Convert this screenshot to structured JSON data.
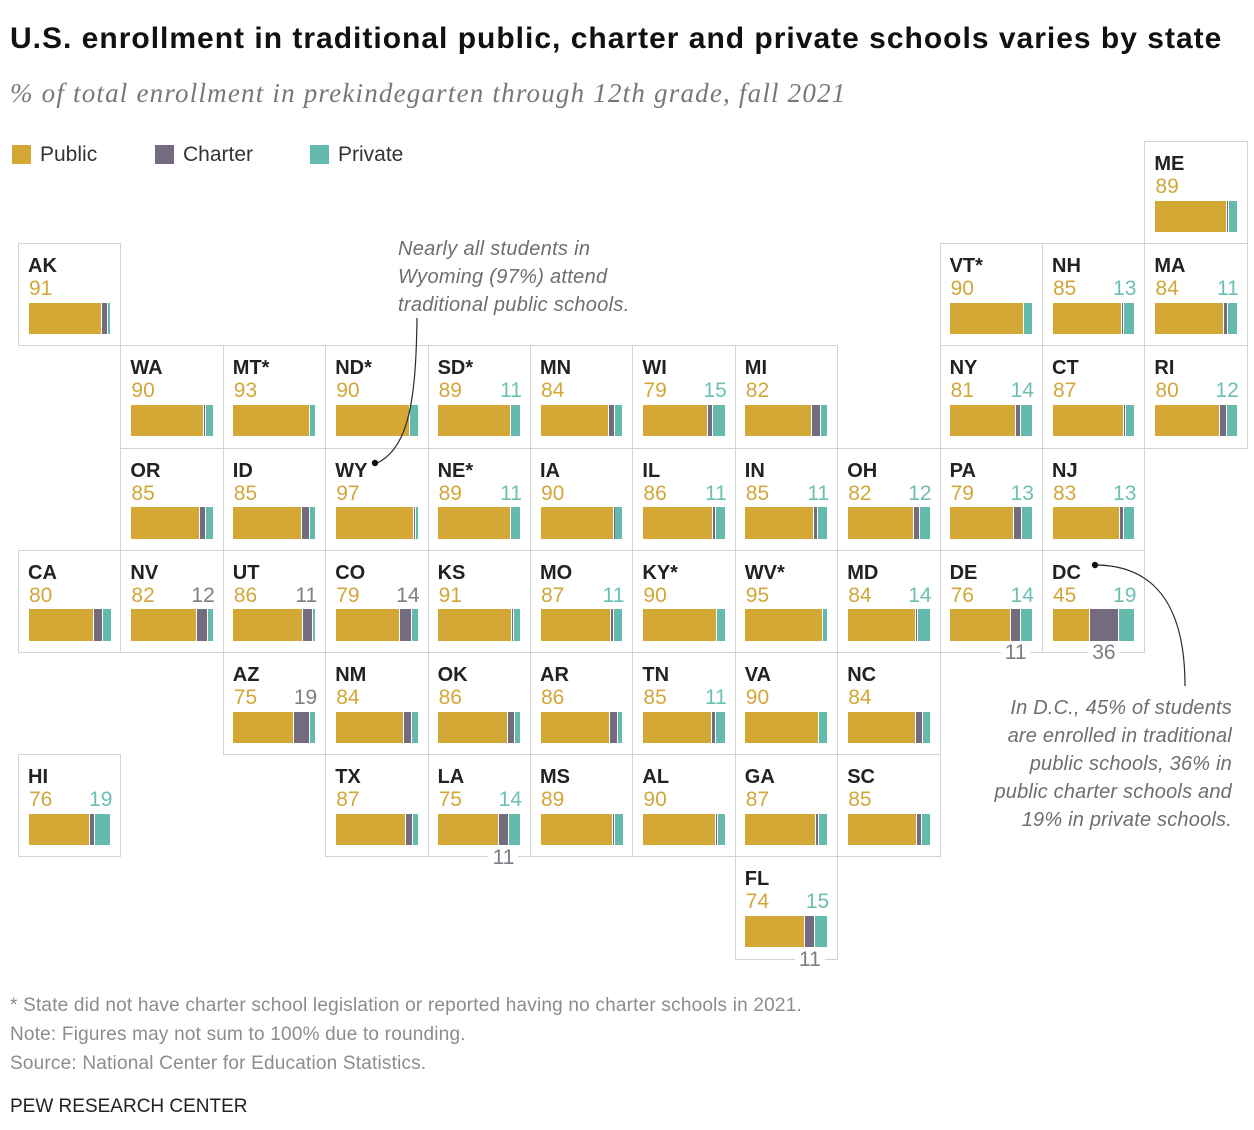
{
  "chart_data": {
    "type": "bar",
    "subtype": "stacked-bar-tile-grid-map",
    "title": "U.S. enrollment in traditional public, charter and private schools varies by state",
    "subtitle": "% of total enrollment in prekindegarten through 12th grade, fall 2021",
    "unit": "%",
    "legend_position": "top-left",
    "label_min": 11,
    "categories": [
      "ME",
      "AK",
      "VT*",
      "NH",
      "MA",
      "WA",
      "MT*",
      "ND*",
      "SD*",
      "MN",
      "WI",
      "MI",
      "NY",
      "CT",
      "RI",
      "OR",
      "ID",
      "WY",
      "NE*",
      "IA",
      "IL",
      "IN",
      "OH",
      "PA",
      "NJ",
      "CA",
      "NV",
      "UT",
      "CO",
      "KS",
      "MO",
      "KY*",
      "WV*",
      "MD",
      "DE",
      "DC",
      "AZ",
      "NM",
      "OK",
      "AR",
      "TN",
      "VA",
      "NC",
      "HI",
      "TX",
      "LA",
      "MS",
      "AL",
      "GA",
      "SC",
      "FL"
    ],
    "series": [
      {
        "name": "Public",
        "key": "public",
        "color": "#D4A834",
        "label_color": "#D2A73A",
        "values": [
          89,
          91,
          90,
          85,
          84,
          90,
          93,
          90,
          89,
          84,
          79,
          82,
          81,
          87,
          80,
          85,
          85,
          97,
          89,
          90,
          86,
          85,
          82,
          79,
          83,
          80,
          82,
          86,
          79,
          91,
          87,
          90,
          95,
          84,
          76,
          45,
          75,
          84,
          86,
          86,
          85,
          90,
          84,
          76,
          87,
          75,
          89,
          90,
          87,
          85,
          74
        ]
      },
      {
        "name": "Charter",
        "key": "charter",
        "color": "#756B81",
        "label_color": "#7E7C84",
        "values": [
          1,
          6,
          0,
          2,
          4,
          1,
          0,
          0,
          0,
          7,
          5,
          10,
          5,
          2,
          8,
          7,
          9,
          1,
          0,
          1,
          3,
          4,
          6,
          8,
          4,
          10,
          12,
          11,
          14,
          1,
          2,
          0,
          0,
          2,
          11,
          36,
          19,
          9,
          8,
          8,
          4,
          0,
          8,
          5,
          7,
          11,
          1,
          1,
          3,
          6,
          11
        ]
      },
      {
        "name": "Private",
        "key": "private",
        "color": "#64BBAD",
        "label_color": "#6CC0B3",
        "values": [
          10,
          3,
          10,
          13,
          11,
          9,
          7,
          10,
          11,
          9,
          15,
          8,
          14,
          10,
          12,
          8,
          6,
          2,
          11,
          9,
          11,
          11,
          12,
          13,
          13,
          10,
          6,
          3,
          7,
          8,
          11,
          10,
          5,
          14,
          14,
          19,
          6,
          7,
          6,
          6,
          11,
          10,
          8,
          19,
          6,
          14,
          10,
          9,
          10,
          9,
          15
        ]
      }
    ],
    "annotations": [
      {
        "target": "WY",
        "lines": [
          "Nearly all students in",
          "Wyoming (97%) attend",
          "traditional public schools."
        ]
      },
      {
        "target": "DC",
        "lines": [
          "In D.C., 45% of students",
          "are enrolled in traditional",
          "public schools, 36% in",
          "public charter schools and",
          "19% in private schools."
        ]
      }
    ]
  },
  "footer": {
    "notes": [
      "* State did not have charter school legislation or reported having no charter schools in 2021.",
      "Note: Figures may not sum to 100% due to rounding.",
      "Source: National Center for Education Statistics."
    ],
    "brand": "PEW RESEARCH CENTER"
  }
}
